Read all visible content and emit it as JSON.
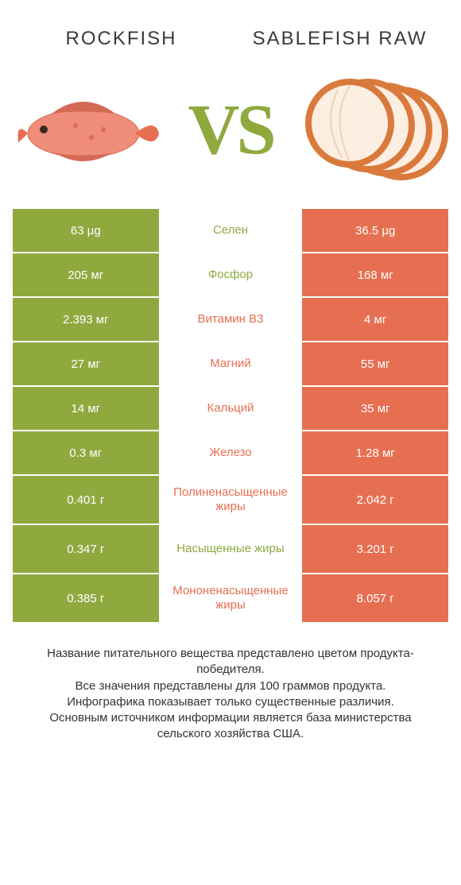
{
  "header": {
    "left_title": "ROCKFISH",
    "right_title": "SABLEFISH RAW",
    "vs_label": "VS"
  },
  "colors": {
    "left": "#8fa93f",
    "right": "#e76f51",
    "mid_left_text": "#8fa93f",
    "mid_right_text": "#e76f51",
    "background": "#ffffff",
    "title_text": "#3a3a3a"
  },
  "typography": {
    "title_fontsize": 24,
    "title_letter_spacing": 2,
    "vs_fontsize": 90,
    "cell_fontsize": 15,
    "footer_fontsize": 15
  },
  "rows": [
    {
      "left": "63 µg",
      "mid": "Селен",
      "right": "36.5 µg",
      "winner": "left",
      "tall": false
    },
    {
      "left": "205 мг",
      "mid": "Фосфор",
      "right": "168 мг",
      "winner": "left",
      "tall": false
    },
    {
      "left": "2.393 мг",
      "mid": "Витамин B3",
      "right": "4 мг",
      "winner": "right",
      "tall": false
    },
    {
      "left": "27 мг",
      "mid": "Магний",
      "right": "55 мг",
      "winner": "right",
      "tall": false
    },
    {
      "left": "14 мг",
      "mid": "Кальций",
      "right": "35 мг",
      "winner": "right",
      "tall": false
    },
    {
      "left": "0.3 мг",
      "mid": "Железо",
      "right": "1.28 мг",
      "winner": "right",
      "tall": false
    },
    {
      "left": "0.401 г",
      "mid": "Полиненасыщенные жиры",
      "right": "2.042 г",
      "winner": "right",
      "tall": true
    },
    {
      "left": "0.347 г",
      "mid": "Насыщенные жиры",
      "right": "3.201 г",
      "winner": "left",
      "tall": true
    },
    {
      "left": "0.385 г",
      "mid": "Мононенасыщенные жиры",
      "right": "8.057 г",
      "winner": "right",
      "tall": true
    }
  ],
  "footer": {
    "line1": "Название питательного вещества представлено цветом продукта-победителя.",
    "line2": "Все значения представлены для 100 граммов продукта.",
    "line3": "Инфографика показывает только существенные различия.",
    "line4": "Основным источником информации является база министерства сельского хозяйства США."
  },
  "images": {
    "left_alt": "rockfish-image",
    "right_alt": "sablefish-image"
  }
}
